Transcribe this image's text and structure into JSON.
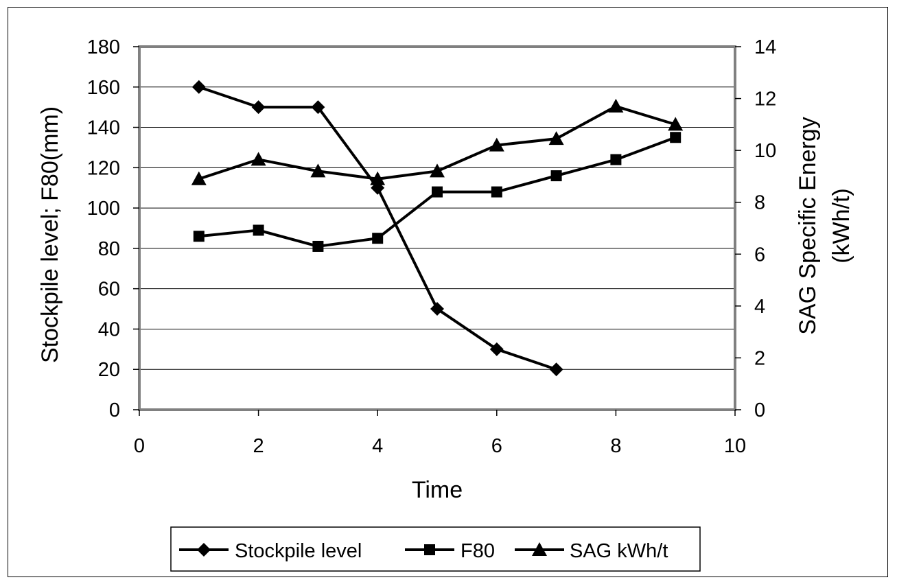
{
  "chart_data": {
    "type": "line",
    "title": "",
    "xlabel": "Time",
    "ylabel_left": "Stockpile level; F80(mm)",
    "ylabel_right_lines": [
      "SAG Specific Energy",
      "(kWh/t)"
    ],
    "xlim": [
      0,
      10
    ],
    "ylim_left": [
      0,
      180
    ],
    "ylim_right": [
      0,
      14
    ],
    "x_ticks": [
      "0",
      "2",
      "4",
      "6",
      "8",
      "10"
    ],
    "y_left_ticks": [
      "0",
      "20",
      "40",
      "60",
      "80",
      "100",
      "120",
      "140",
      "160",
      "180"
    ],
    "y_right_ticks": [
      "0",
      "2",
      "4",
      "6",
      "8",
      "10",
      "12",
      "14"
    ],
    "grid": "horizontal",
    "legend_position": "bottom",
    "colors": {
      "line": "#000000",
      "plot_border": "#808080",
      "grid": "#000000"
    },
    "series": [
      {
        "name": "Stockpile level",
        "axis": "left",
        "marker": "diamond",
        "x": [
          1,
          2,
          3,
          4,
          5,
          6,
          7
        ],
        "values": [
          160,
          150,
          150,
          110,
          50,
          30,
          20
        ]
      },
      {
        "name": "F80",
        "axis": "left",
        "marker": "square",
        "x": [
          1,
          2,
          3,
          4,
          5,
          6,
          7,
          8,
          9
        ],
        "values": [
          86,
          89,
          81,
          85,
          108,
          108,
          116,
          124,
          135
        ]
      },
      {
        "name": "SAG kWh/t",
        "axis": "right",
        "marker": "triangle",
        "x": [
          1,
          2,
          3,
          4,
          5,
          6,
          7,
          8,
          9
        ],
        "values": [
          8.9,
          9.65,
          9.2,
          8.9,
          9.2,
          10.2,
          10.45,
          11.7,
          11.0
        ]
      }
    ]
  }
}
